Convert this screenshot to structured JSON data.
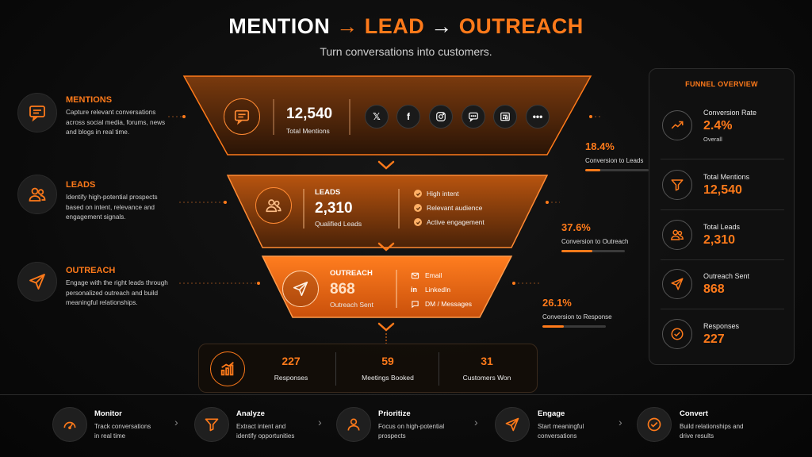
{
  "header": {
    "title_part1": "MENTION",
    "arrow1": "→",
    "title_part2": "LEAD",
    "arrow2": "→",
    "title_part3": "OUTREACH",
    "subtitle": "Turn conversations into customers."
  },
  "stages_left": [
    {
      "title": "MENTIONS",
      "description": "Capture relevant conversations across social media, forums, news and blogs in real time.",
      "icon": "chat-icon"
    },
    {
      "title": "LEADS",
      "description": "Identify high-potential prospects based on intent, relevance and engagement signals.",
      "icon": "users-icon"
    },
    {
      "title": "OUTREACH",
      "description": "Engage with the right leads through personalized outreach and build meaningful relationships.",
      "icon": "send-icon"
    }
  ],
  "funnel": {
    "mentions": {
      "value": "12,540",
      "label": "Total Mentions",
      "sources": [
        "x-icon",
        "facebook-icon",
        "instagram-icon",
        "forum-icon",
        "news-icon",
        "more-icon"
      ]
    },
    "leads": {
      "heading": "LEADS",
      "value": "2,310",
      "label": "Qualified Leads",
      "signals": [
        "High intent",
        "Relevant audience",
        "Active engagement"
      ]
    },
    "outreach": {
      "heading": "OUTREACH",
      "value": "868",
      "label": "Outreach Sent",
      "channels": [
        "Email",
        "LinkedIn",
        "DM / Messages"
      ]
    }
  },
  "conversions": [
    {
      "percent": "18.4%",
      "label": "Conversion to Leads",
      "fraction": 0.184
    },
    {
      "percent": "37.6%",
      "label": "Conversion to Outreach",
      "fraction": 0.376
    },
    {
      "percent": "26.1%",
      "label": "Conversion to Response",
      "fraction": 0.261
    }
  ],
  "results": [
    {
      "value": "227",
      "label": "Responses"
    },
    {
      "value": "59",
      "label": "Meetings Booked"
    },
    {
      "value": "31",
      "label": "Customers Won"
    }
  ],
  "overview": {
    "title": "FUNNEL OVERVIEW",
    "items": [
      {
        "label": "Conversion Rate",
        "value": "2.4%",
        "sub": "Overall",
        "icon": "trend-icon"
      },
      {
        "label": "Total Mentions",
        "value": "12,540",
        "sub": "",
        "icon": "filter-icon"
      },
      {
        "label": "Total Leads",
        "value": "2,310",
        "sub": "",
        "icon": "users-icon"
      },
      {
        "label": "Outreach Sent",
        "value": "868",
        "sub": "",
        "icon": "send-icon"
      },
      {
        "label": "Responses",
        "value": "227",
        "sub": "",
        "icon": "check-circle-icon"
      }
    ]
  },
  "steps": [
    {
      "title": "Monitor",
      "description_line1": "Track conversations",
      "description_line2": "in real time",
      "icon": "gauge-icon"
    },
    {
      "title": "Analyze",
      "description_line1": "Extract intent and",
      "description_line2": "identify opportunities",
      "icon": "filter-icon"
    },
    {
      "title": "Prioritize",
      "description_line1": "Focus on high-potential",
      "description_line2": "prospects",
      "icon": "user-icon"
    },
    {
      "title": "Engage",
      "description_line1": "Start meaningful",
      "description_line2": "conversations",
      "icon": "send-icon"
    },
    {
      "title": "Convert",
      "description_line1": "Build relationships and",
      "description_line2": "drive results",
      "icon": "check-circle-icon"
    }
  ],
  "colors": {
    "accent": "#ff7a1a",
    "background": "#0a0a0a"
  }
}
